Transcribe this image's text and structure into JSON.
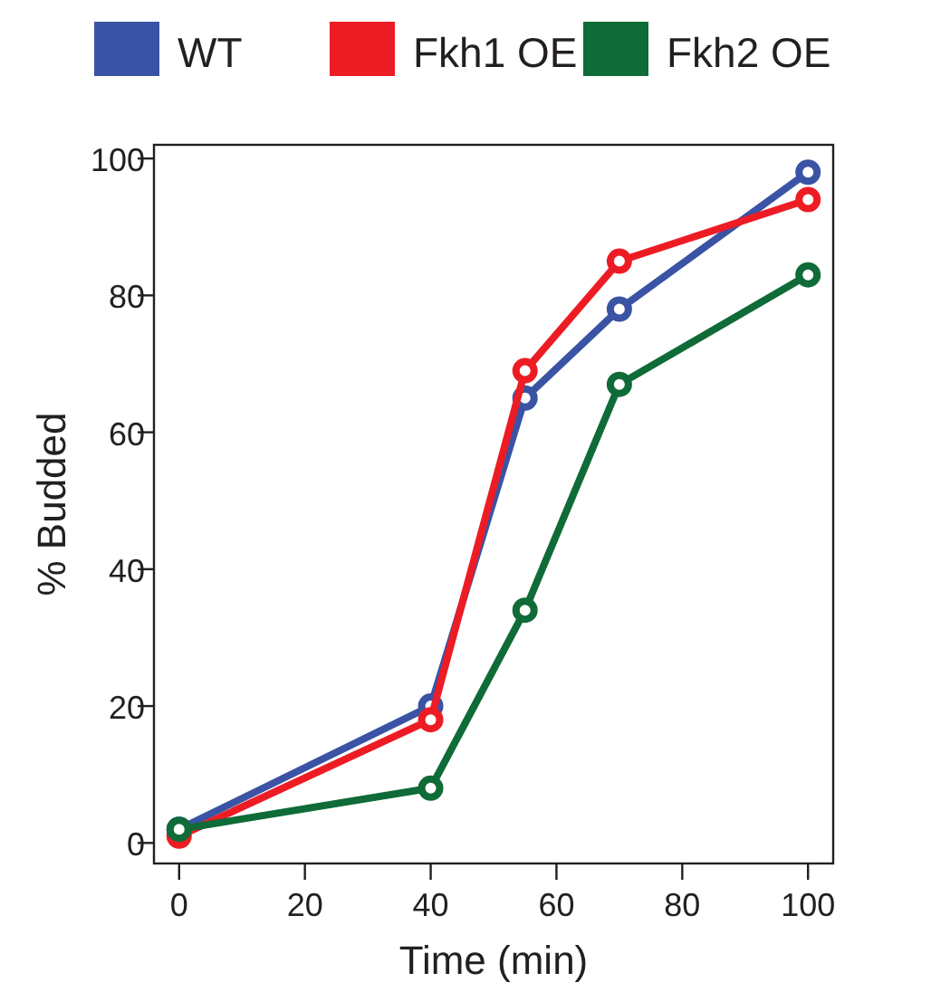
{
  "chart_data": {
    "type": "line",
    "xlabel": "Time (min)",
    "ylabel": "% Budded",
    "x": [
      0,
      40,
      55,
      70,
      100
    ],
    "series": [
      {
        "name": "WT",
        "color": "#3a53a4",
        "values": [
          2,
          20,
          65,
          78,
          98
        ]
      },
      {
        "name": "Fkh1 OE",
        "color": "#ed1c24",
        "values": [
          1,
          18,
          69,
          85,
          94
        ]
      },
      {
        "name": "Fkh2 OE",
        "color": "#0f6b37",
        "values": [
          2,
          8,
          34,
          67,
          83
        ]
      }
    ],
    "xlim": [
      -4,
      104
    ],
    "ylim": [
      -3,
      102
    ],
    "xticks": [
      0,
      20,
      40,
      60,
      80,
      100
    ],
    "yticks": [
      0,
      20,
      40,
      60,
      80,
      100
    ],
    "legend": "top",
    "marker": "circle",
    "line_style": "solid",
    "grid": false
  }
}
